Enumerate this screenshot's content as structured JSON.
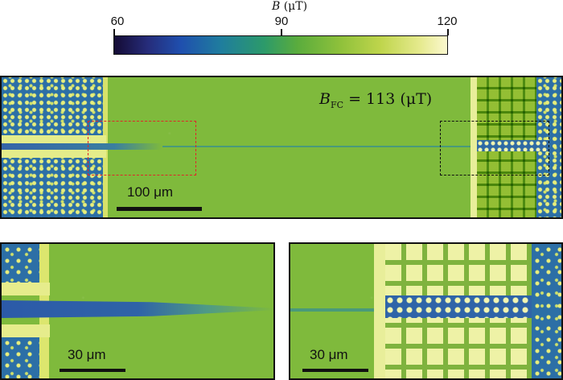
{
  "colorbar": {
    "title_symbol": "B",
    "title_unit": "(μT)",
    "ticks": [
      "60",
      "90",
      "120"
    ],
    "colors": [
      "#140b34",
      "#1f4fae",
      "#2c9a6a",
      "#8fc13b",
      "#fbf8cf"
    ]
  },
  "main_panel": {
    "annotation_symbol": "B",
    "annotation_subscript": "FC",
    "annotation_value": " = 113 (μT)",
    "scale_label": "100 μm",
    "red_box_color": "#e0242a",
    "black_box_color": "#111111"
  },
  "inset_left": {
    "scale_label": "30 μm"
  },
  "inset_right": {
    "scale_label": "30 μm"
  }
}
